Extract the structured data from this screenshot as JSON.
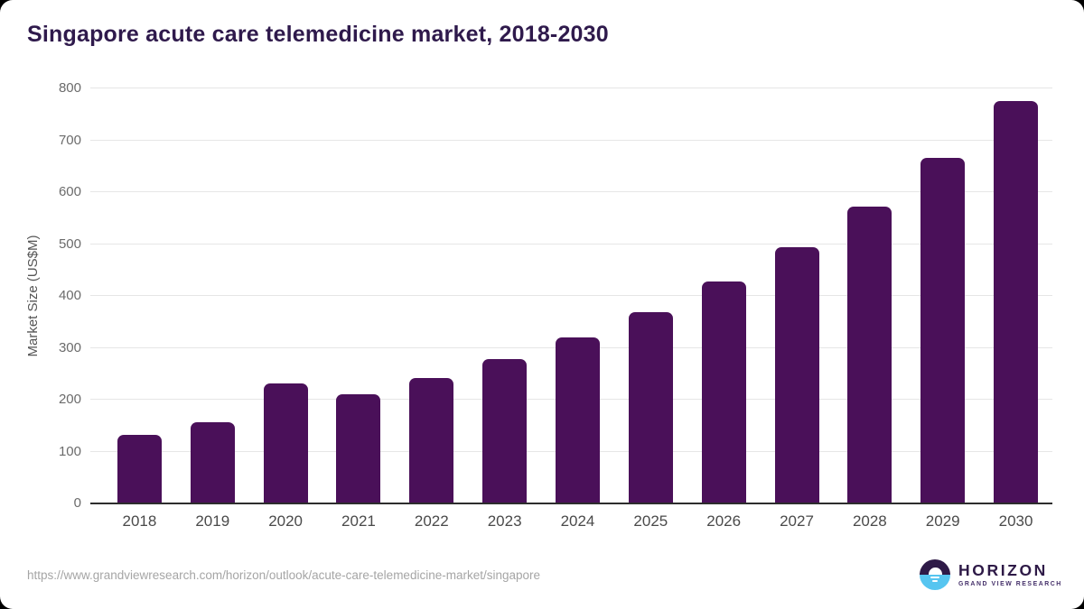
{
  "title": "Singapore acute care telemedicine market, 2018-2030",
  "chart_data": {
    "type": "bar",
    "categories": [
      "2018",
      "2019",
      "2020",
      "2021",
      "2022",
      "2023",
      "2024",
      "2025",
      "2026",
      "2027",
      "2028",
      "2029",
      "2030"
    ],
    "values": [
      133,
      156,
      232,
      210,
      242,
      278,
      320,
      369,
      428,
      494,
      572,
      666,
      775
    ],
    "title": "Singapore acute care telemedicine market, 2018-2030",
    "xlabel": "",
    "ylabel": "Market Size (US$M)",
    "ylim": [
      0,
      800
    ],
    "ytick_step": 100,
    "grid": "horizontal",
    "legend": "none",
    "bar_color": "#4a1059"
  },
  "footer": {
    "source_url": "https://www.grandviewresearch.com/horizon/outlook/acute-care-telemedicine-market/singapore",
    "logo": {
      "title": "HORIZON",
      "subtitle": "GRAND VIEW RESEARCH",
      "icon": "sunset-over-water-icon",
      "purple": "#2e1a47",
      "blue": "#56c5f0"
    }
  },
  "colors": {
    "title_text": "#2f1a4c",
    "bar": "#4a1059",
    "gridline": "#e6e6e6",
    "axis_line": "#2d2d2d",
    "tick_text": "#6b6b6b"
  }
}
